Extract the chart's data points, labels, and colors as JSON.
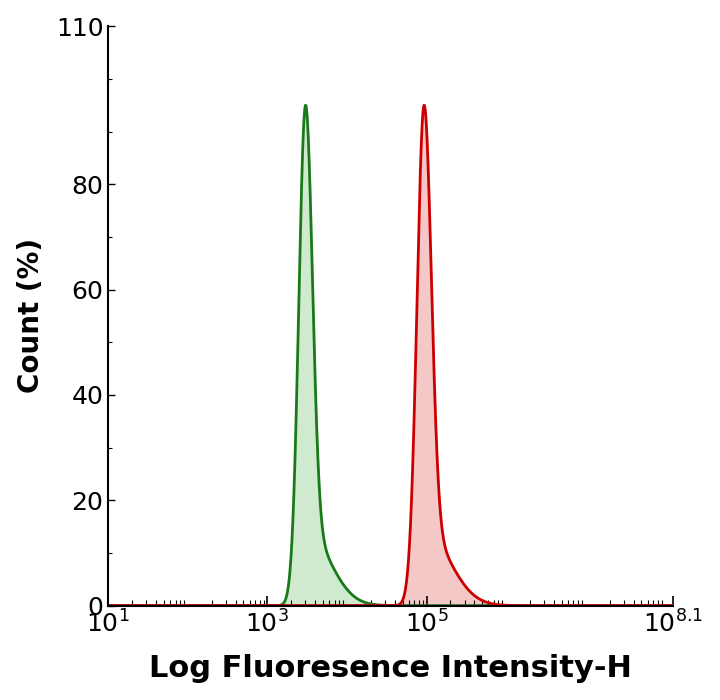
{
  "title": "",
  "xlabel": "Log Fluoresence Intensity-H",
  "ylabel": "Count (%)",
  "xlim_log": [
    1,
    8.1
  ],
  "ylim": [
    0,
    110
  ],
  "yticks": [
    0,
    20,
    40,
    60,
    80,
    110
  ],
  "xtick_positions": [
    1,
    3,
    5,
    8.1
  ],
  "green_peak_log": 3.48,
  "green_peak_height": 95,
  "green_sigma_log": 0.085,
  "red_peak_log": 4.97,
  "red_peak_height": 95,
  "red_sigma_log": 0.09,
  "green_line_color": "#1a7a1a",
  "green_fill_color": "#d0ead0",
  "red_line_color": "#cc0000",
  "red_fill_color": "#f5c8c8",
  "background_color": "#ffffff",
  "xlabel_fontsize": 22,
  "ylabel_fontsize": 20,
  "tick_fontsize": 18,
  "line_width": 2.0
}
